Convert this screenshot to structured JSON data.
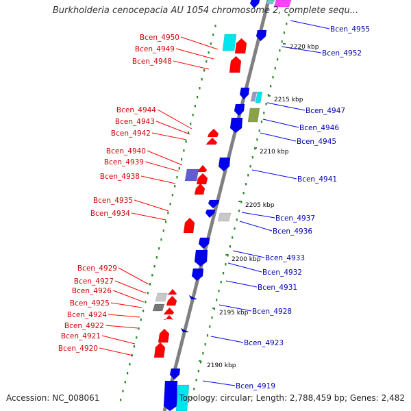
{
  "title": "Burkholderia cenocepacia AU 1054 chromosome 2, complete sequ...",
  "footer": {
    "accession": "Accession: NC_008061",
    "summary": "Topology: circular; Length: 2,788,459 bp; Genes: 2,482"
  },
  "colors": {
    "backbone": "#7f7f7f",
    "ruler": "#2e8b2e",
    "reverse_gene": "#ff0000",
    "forward_gene": "#0000ee",
    "reverse_label": "#cc0000",
    "forward_label": "#0000aa"
  },
  "ticks": [
    {
      "label": "2220 kbp",
      "pos_kbp": 2220
    },
    {
      "label": "2215 kbp",
      "pos_kbp": 2215
    },
    {
      "label": "2210 kbp",
      "pos_kbp": 2210
    },
    {
      "label": "2205 kbp",
      "pos_kbp": 2205
    },
    {
      "label": "2200 kbp",
      "pos_kbp": 2200
    },
    {
      "label": "2195 kbp",
      "pos_kbp": 2195
    },
    {
      "label": "2190 kbp",
      "pos_kbp": 2190
    }
  ],
  "reverse_genes": [
    "Bcen_4950",
    "Bcen_4949",
    "Bcen_4948",
    "Bcen_4944",
    "Bcen_4943",
    "Bcen_4942",
    "Bcen_4940",
    "Bcen_4939",
    "Bcen_4938",
    "Bcen_4935",
    "Bcen_4934",
    "Bcen_4929",
    "Bcen_4927",
    "Bcen_4926",
    "Bcen_4925",
    "Bcen_4924",
    "Bcen_4922",
    "Bcen_4921",
    "Bcen_4920"
  ],
  "forward_genes": [
    "Bcen_4955",
    "Bcen_4952",
    "Bcen_4947",
    "Bcen_4946",
    "Bcen_4945",
    "Bcen_4941",
    "Bcen_4937",
    "Bcen_4936",
    "Bcen_4933",
    "Bcen_4932",
    "Bcen_4931",
    "Bcen_4928",
    "Bcen_4923",
    "Bcen_4919"
  ]
}
